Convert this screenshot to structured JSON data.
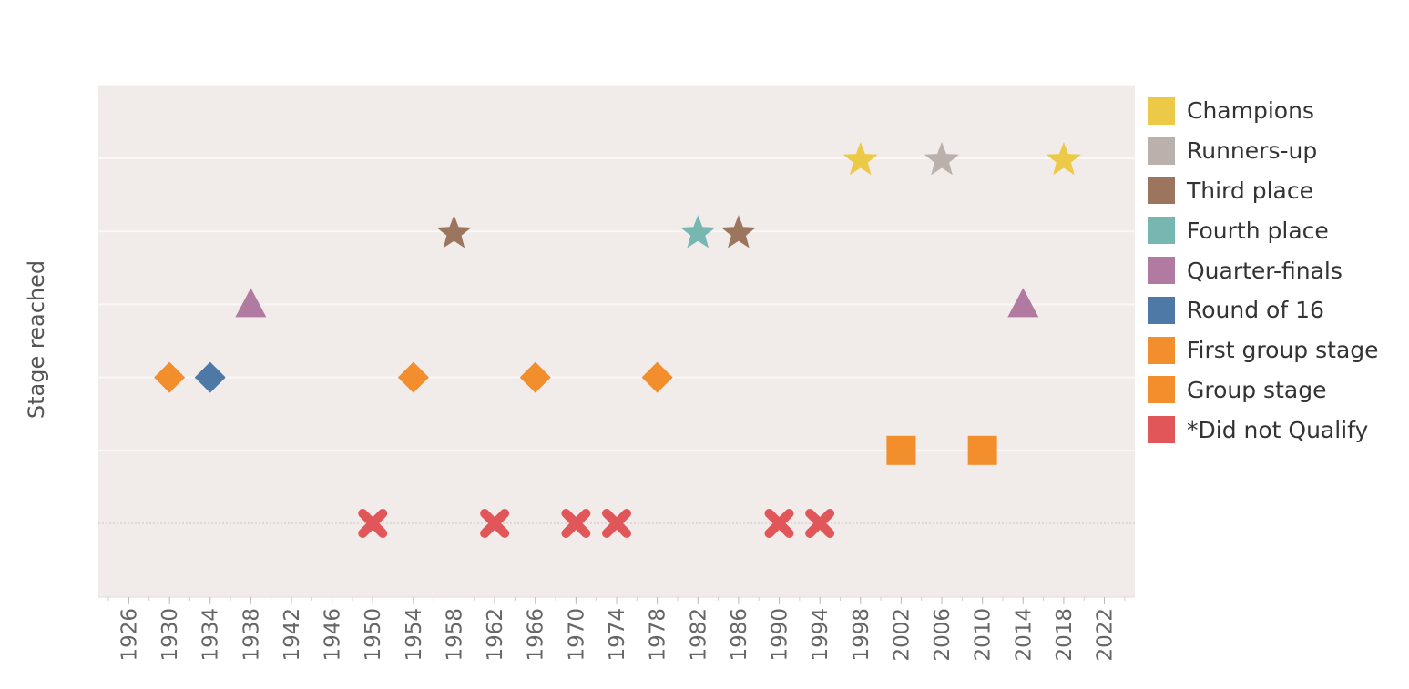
{
  "chart_data": {
    "type": "scatter",
    "title": "",
    "xlabel": "",
    "ylabel": "Stage reached",
    "xlim": [
      1923,
      2025
    ],
    "x_ticks": [
      1926,
      1930,
      1934,
      1938,
      1942,
      1946,
      1950,
      1954,
      1958,
      1962,
      1966,
      1970,
      1974,
      1978,
      1982,
      1986,
      1990,
      1994,
      1998,
      2002,
      2006,
      2010,
      2014,
      2018,
      2022
    ],
    "y_levels": 7,
    "grid": true,
    "legend_position": "right",
    "categories": [
      {
        "key": "champions",
        "label": "Champions",
        "color": "#EDC948",
        "shape": "star",
        "level": 6
      },
      {
        "key": "runners_up",
        "label": "Runners-up",
        "color": "#BAB0AC",
        "shape": "star",
        "level": 6
      },
      {
        "key": "third",
        "label": "Third place",
        "color": "#9C755F",
        "shape": "star",
        "level": 5
      },
      {
        "key": "fourth",
        "label": "Fourth place",
        "color": "#76B7B2",
        "shape": "star",
        "level": 5
      },
      {
        "key": "qf",
        "label": "Quarter-finals",
        "color": "#B07AA1",
        "shape": "triangle",
        "level": 4
      },
      {
        "key": "r16",
        "label": "Round of 16",
        "color": "#4E79A7",
        "shape": "diamond",
        "level": 3
      },
      {
        "key": "first_group",
        "label": "First group stage",
        "color": "#F28E2B",
        "shape": "diamond",
        "level": 3
      },
      {
        "key": "group",
        "label": "Group stage",
        "color": "#F28E2B",
        "shape": "square",
        "level": 2
      },
      {
        "key": "dnq",
        "label": "*Did not Qualify",
        "color": "#E15759",
        "shape": "cross",
        "level": 1
      }
    ],
    "points": [
      {
        "year": 1930,
        "stage": "first_group"
      },
      {
        "year": 1934,
        "stage": "r16"
      },
      {
        "year": 1938,
        "stage": "qf"
      },
      {
        "year": 1950,
        "stage": "dnq"
      },
      {
        "year": 1954,
        "stage": "first_group"
      },
      {
        "year": 1958,
        "stage": "third"
      },
      {
        "year": 1962,
        "stage": "dnq"
      },
      {
        "year": 1966,
        "stage": "first_group"
      },
      {
        "year": 1970,
        "stage": "dnq"
      },
      {
        "year": 1974,
        "stage": "dnq"
      },
      {
        "year": 1978,
        "stage": "first_group"
      },
      {
        "year": 1982,
        "stage": "fourth"
      },
      {
        "year": 1986,
        "stage": "third"
      },
      {
        "year": 1990,
        "stage": "dnq"
      },
      {
        "year": 1994,
        "stage": "dnq"
      },
      {
        "year": 1998,
        "stage": "champions"
      },
      {
        "year": 2002,
        "stage": "group"
      },
      {
        "year": 2006,
        "stage": "runners_up"
      },
      {
        "year": 2010,
        "stage": "group"
      },
      {
        "year": 2014,
        "stage": "qf"
      },
      {
        "year": 2018,
        "stage": "champions"
      }
    ]
  },
  "legend": {
    "items": [
      {
        "label": "Champions",
        "color": "#EDC948"
      },
      {
        "label": "Runners-up",
        "color": "#BAB0AC"
      },
      {
        "label": "Third place",
        "color": "#9C755F"
      },
      {
        "label": "Fourth place",
        "color": "#76B7B2"
      },
      {
        "label": "Quarter-finals",
        "color": "#B07AA1"
      },
      {
        "label": "Round of 16",
        "color": "#4E79A7"
      },
      {
        "label": "First group stage",
        "color": "#F28E2B"
      },
      {
        "label": "Group stage",
        "color": "#F28E2B"
      },
      {
        "label": "*Did not Qualify",
        "color": "#E15759"
      }
    ]
  },
  "colors": {
    "plot_background": "#F1EBE9",
    "gridline": "#FAF7F6",
    "axis_text": "#666666"
  }
}
